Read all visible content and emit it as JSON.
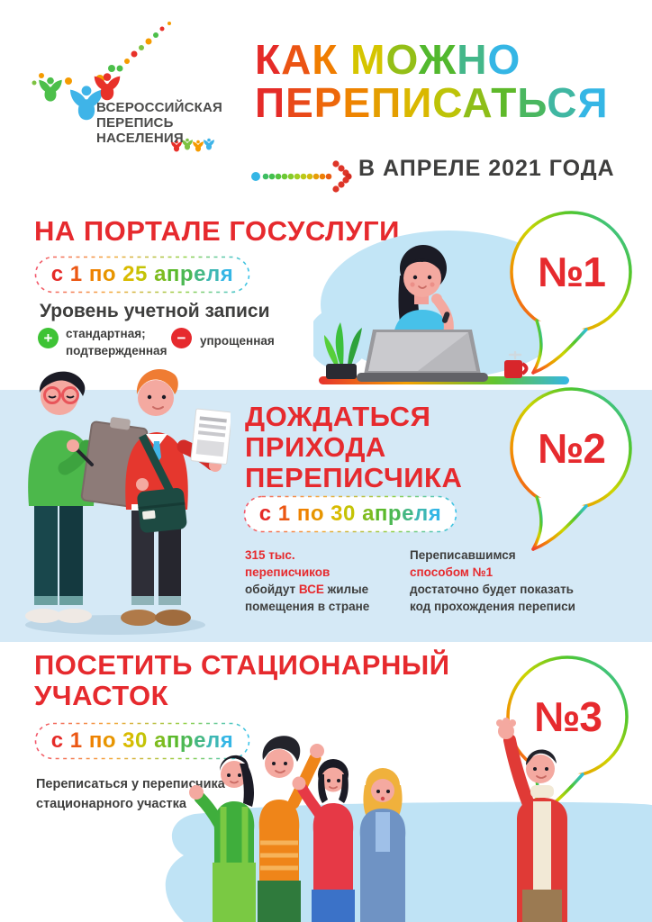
{
  "colors": {
    "red": "#e62a2e",
    "dark_text": "#3e3e3d",
    "band_blue": "#d5e9f6",
    "blob_blue": "#c2e5f6",
    "plus_green": "#3ec335",
    "rainbow": [
      "#e52b28",
      "#f07d00",
      "#d5c500",
      "#52b82e",
      "#35b6e5"
    ]
  },
  "logo": {
    "text": "ВСЕРОССИЙСКАЯ\nПЕРЕПИСЬ\nНАСЕЛЕНИЯ"
  },
  "header": {
    "title_line1": "КАК МОЖНО",
    "title_line2": "ПЕРЕПИСАТЬСЯ",
    "subtitle": "В АПРЕЛЕ 2021 ГОДА"
  },
  "method1": {
    "number": "№1",
    "title": "НА ПОРТАЛЕ ГОСУСЛУГИ",
    "dates": "с 1 по 25 апреля",
    "account_heading": "Уровень учетной записи",
    "plus_sign": "+",
    "minus_sign": "−",
    "account_ok": "стандартная;\nподтвержденная",
    "account_simple": "упрощенная"
  },
  "method2": {
    "number": "№2",
    "title": "ДОЖДАТЬСЯ\nПРИХОДА\nПЕРЕПИСЧИКА",
    "dates": "с 1 по 30 апреля",
    "stat_lead": "315 тыс.\nпереписчиков",
    "stat_pre": "обойдут ",
    "stat_emph": "ВСЕ",
    "stat_post": " жилые\nпомещения в стране",
    "note_line1": "Переписавшимся",
    "note_emph": "способом №1",
    "note_rest": "достаточно будет показать\nкод прохождения переписи"
  },
  "method3": {
    "number": "№3",
    "title": "ПОСЕТИТЬ СТАЦИОНАРНЫЙ\nУЧАСТОК",
    "dates": "с 1 по 30 апреля",
    "note": "Переписаться у переписчика\nстационарного участка"
  }
}
